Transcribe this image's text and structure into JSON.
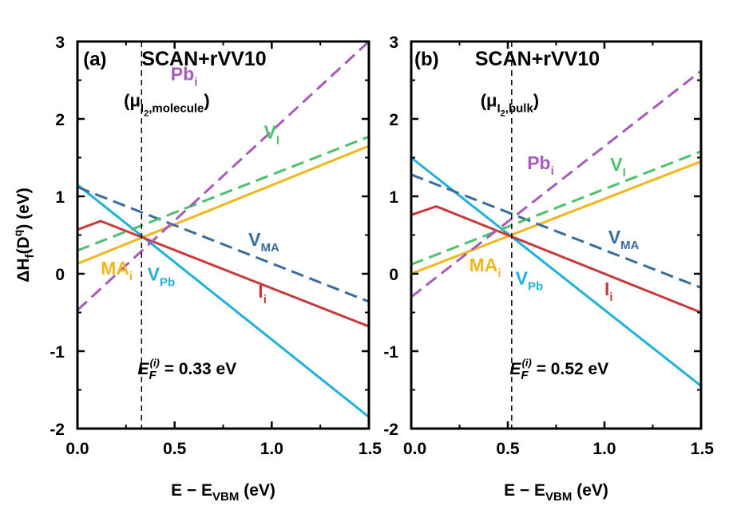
{
  "chart_data": [
    {
      "type": "line",
      "panel_label": "(a)",
      "title": "SCAN+rVV10",
      "subtitle": {
        "prefix": "(",
        "mu": "μ",
        "sub1": "I",
        "sub2": "2",
        "sub3": ",molecule",
        "suffix": ")"
      },
      "xlabel": {
        "main": "E − E",
        "sub": "VBM",
        "unit": " (eV)"
      },
      "ylabel": {
        "prefix": "ΔH",
        "sub": "f",
        "mid": "(D",
        "sup": "q",
        "suffix": ") (eV)"
      },
      "xlim": [
        0,
        1.5
      ],
      "ylim": [
        -2,
        3
      ],
      "xticks": [
        "0.0",
        "0.5",
        "1.0",
        "1.5"
      ],
      "yticks": [
        "-2",
        "-1",
        "0",
        "1",
        "2",
        "3"
      ],
      "fermi": {
        "x": 0.33,
        "label_pre": "E",
        "label_sub": "F",
        "label_sup": "(i)",
        "label_val": " = 0.33 eV"
      },
      "series": [
        {
          "name": "MAi",
          "base": "MA",
          "subscript": "i",
          "color": "#F2B61D",
          "dashed": false,
          "points": [
            [
              0,
              0.13
            ],
            [
              1.5,
              1.65
            ]
          ]
        },
        {
          "name": "VPb",
          "base": "V",
          "subscript": "Pb",
          "color": "#1EB1E0",
          "dashed": false,
          "points": [
            [
              0,
              1.15
            ],
            [
              1.5,
              -1.85
            ]
          ]
        },
        {
          "name": "Ii",
          "base": "I",
          "subscript": "i",
          "color": "#C9393A",
          "dashed": false,
          "points": [
            [
              0,
              0.57
            ],
            [
              0.12,
              0.68
            ],
            [
              1.5,
              -0.68
            ]
          ]
        },
        {
          "name": "VMA",
          "base": "V",
          "subscript": "MA",
          "color": "#3A6B9E",
          "dashed": true,
          "points": [
            [
              0,
              1.12
            ],
            [
              1.5,
              -0.36
            ]
          ]
        },
        {
          "name": "VI",
          "base": "V",
          "subscript": "I",
          "color": "#4DC06D",
          "dashed": true,
          "points": [
            [
              0,
              0.3
            ],
            [
              1.5,
              1.77
            ]
          ]
        },
        {
          "name": "Pbi",
          "base": "Pb",
          "subscript": "i",
          "color": "#A65BBD",
          "dashed": true,
          "points": [
            [
              0,
              -0.47
            ],
            [
              1.5,
              3.0
            ]
          ]
        }
      ]
    },
    {
      "type": "line",
      "panel_label": "(b)",
      "title": "SCAN+rVV10",
      "subtitle": {
        "prefix": "(",
        "mu": "μ",
        "sub1": "I",
        "sub2": "2",
        "sub3": ",bulk",
        "suffix": ")"
      },
      "xlabel": {
        "main": "E − E",
        "sub": "VBM",
        "unit": " (eV)"
      },
      "xlim": [
        0,
        1.5
      ],
      "ylim": [
        -2,
        3
      ],
      "xticks": [
        "0.0",
        "0.5",
        "1.0",
        "1.5"
      ],
      "yticks": [
        "-2",
        "-1",
        "0",
        "1",
        "2",
        "3"
      ],
      "fermi": {
        "x": 0.52,
        "label_pre": "E",
        "label_sub": "F",
        "label_sup": "(i)",
        "label_val": " = 0.52 eV"
      },
      "series": [
        {
          "name": "MAi",
          "base": "MA",
          "subscript": "i",
          "color": "#F2B61D",
          "dashed": false,
          "points": [
            [
              0,
              0.0
            ],
            [
              1.5,
              1.45
            ]
          ]
        },
        {
          "name": "VPb",
          "base": "V",
          "subscript": "Pb",
          "color": "#1EB1E0",
          "dashed": false,
          "points": [
            [
              0,
              1.5
            ],
            [
              1.5,
              -1.45
            ]
          ]
        },
        {
          "name": "Ii",
          "base": "I",
          "subscript": "i",
          "color": "#C9393A",
          "dashed": false,
          "points": [
            [
              0,
              0.76
            ],
            [
              0.13,
              0.87
            ],
            [
              1.5,
              -0.5
            ]
          ]
        },
        {
          "name": "VMA",
          "base": "V",
          "subscript": "MA",
          "color": "#3A6B9E",
          "dashed": true,
          "points": [
            [
              0,
              1.28
            ],
            [
              1.5,
              -0.18
            ]
          ]
        },
        {
          "name": "VI",
          "base": "V",
          "subscript": "I",
          "color": "#4DC06D",
          "dashed": true,
          "points": [
            [
              0,
              0.12
            ],
            [
              1.5,
              1.58
            ]
          ]
        },
        {
          "name": "Pbi",
          "base": "Pb",
          "subscript": "i",
          "color": "#A65BBD",
          "dashed": true,
          "points": [
            [
              0,
              -0.3
            ],
            [
              1.5,
              2.62
            ]
          ]
        }
      ]
    }
  ]
}
